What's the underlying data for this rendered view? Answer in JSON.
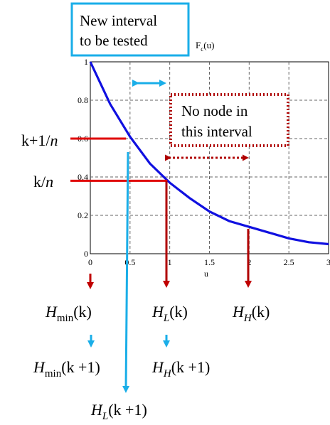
{
  "chart_data": {
    "type": "line",
    "function_label": "F",
    "function_label_sub": "c",
    "function_label_arg": "(u)",
    "xlabel": "u",
    "xlim": [
      0,
      3
    ],
    "ylim": [
      0,
      1
    ],
    "xticks": [
      "0",
      "0.5",
      "1",
      "1.5",
      "2",
      "2.5",
      "3"
    ],
    "yticks": [
      "0",
      "0.2",
      "0.4",
      "0.6",
      "0.8",
      "1"
    ],
    "grid": true,
    "series": [
      {
        "x": [
          0,
          0.25,
          0.5,
          0.75,
          1.0,
          1.25,
          1.5,
          1.75,
          2.0,
          2.25,
          2.5,
          2.75,
          3.0
        ],
        "y": [
          1.0,
          0.78,
          0.61,
          0.47,
          0.37,
          0.29,
          0.22,
          0.17,
          0.14,
          0.11,
          0.08,
          0.06,
          0.05
        ],
        "color": "#1010e0"
      }
    ],
    "level_marks": [
      {
        "y": 0.6,
        "x_end": 0.45,
        "label_main": "k+1/",
        "label_italic": "n"
      },
      {
        "y": 0.38,
        "x_end": 0.97,
        "label_main": "k/",
        "label_italic": "n"
      }
    ],
    "drop_arrows": [
      {
        "x": 0,
        "color": "#c00000"
      },
      {
        "x": 1,
        "color": "#c00000"
      },
      {
        "x": 2,
        "color": "#c00000"
      }
    ],
    "annotations": {
      "new_interval_line1": "New interval",
      "new_interval_line2": "to be tested",
      "no_node_line1": "No node in",
      "no_node_line2": "this interval"
    },
    "bottom_labels": {
      "hmin_k": {
        "sym": "H",
        "sub": "min",
        "arg": "(k)"
      },
      "hl_k": {
        "sym": "H",
        "sub": "L",
        "arg": "(k)"
      },
      "hh_k": {
        "sym": "H",
        "sub": "H",
        "arg": "(k)"
      },
      "hmin_k1": {
        "sym": "H",
        "sub": "min",
        "arg": "(k +1)"
      },
      "hh_k1": {
        "sym": "H",
        "sub": "H",
        "arg": "(k +1)"
      },
      "hl_k1": {
        "sym": "H",
        "sub": "L",
        "arg": "(k +1)"
      }
    },
    "colors": {
      "curve": "#1010e0",
      "red": "#c00000",
      "dark_red": "#b00000",
      "cyan": "#1aaee8"
    }
  }
}
